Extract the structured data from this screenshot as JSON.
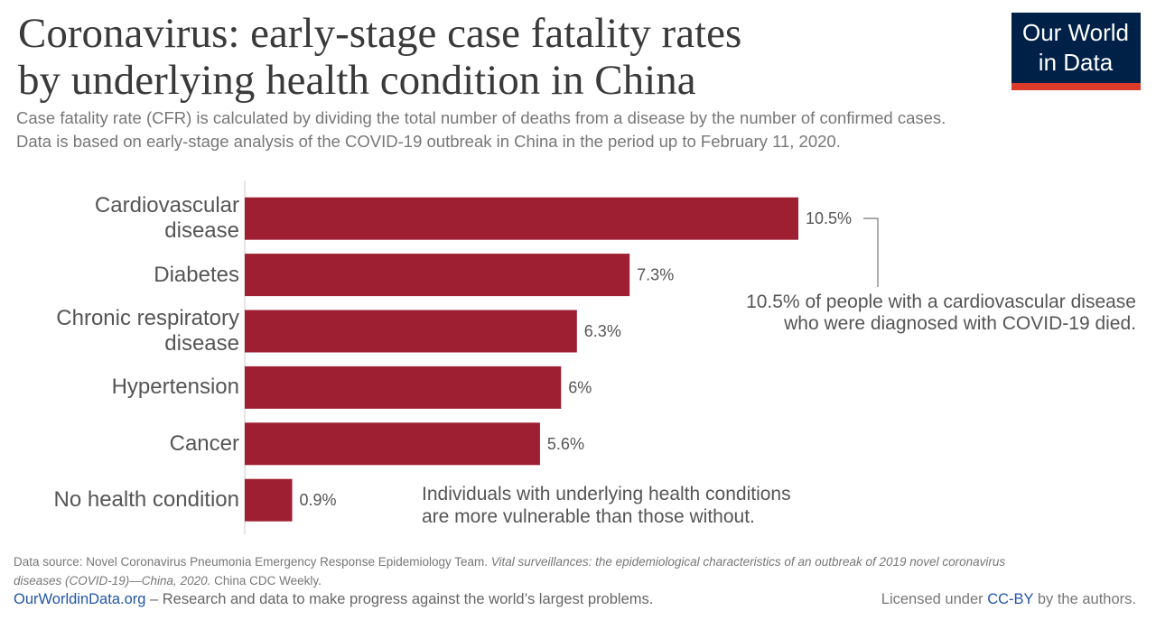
{
  "chart_data": {
    "type": "bar",
    "orientation": "horizontal",
    "title": [
      "Coronavirus: early-stage case fatality rates",
      "by underlying health condition in China"
    ],
    "subtitle": [
      "Case fatality rate (CFR) is calculated by dividing the total number of deaths from a disease by the number of confirmed cases.",
      "Data is based on early-stage analysis of the COVID-19 outbreak in China in the period up to February 11, 2020."
    ],
    "logo": [
      "Our World",
      "in Data"
    ],
    "categories": [
      "Cardiovascular disease",
      "Diabetes",
      "Chronic respiratory disease",
      "Hypertension",
      "Cancer",
      "No health condition"
    ],
    "values": [
      10.5,
      7.3,
      6.3,
      6,
      5.6,
      0.9
    ],
    "value_labels": [
      "10.5%",
      "7.3%",
      "6.3%",
      "6%",
      "5.6%",
      "0.9%"
    ],
    "color": "#9e1f32",
    "xlim": [
      0,
      10.5
    ],
    "annotations": [
      [
        "10.5% of people with a cardiovascular disease",
        "who were diagnosed with COVID-19 died."
      ],
      [
        "Individuals with underlying health conditions",
        "are more vulnerable than those without."
      ]
    ],
    "source": {
      "text": "Data source: Novel Coronavirus Pneumonia Emergency Response Epidemiology Team. ",
      "italic_1": "Vital surveillances: the epidemiological characteristics of an outbreak of 2019 novel coronavirus",
      "italic_2": "diseases (COVID-19)—China, 2020.",
      "end": " China CDC Weekly."
    },
    "footer": {
      "site": "OurWorldinData.org",
      "tagline": " – Research and data to make progress against the world’s largest problems.",
      "license_pre": "Licensed under ",
      "license": "CC-BY",
      "license_post": " by the authors."
    }
  }
}
